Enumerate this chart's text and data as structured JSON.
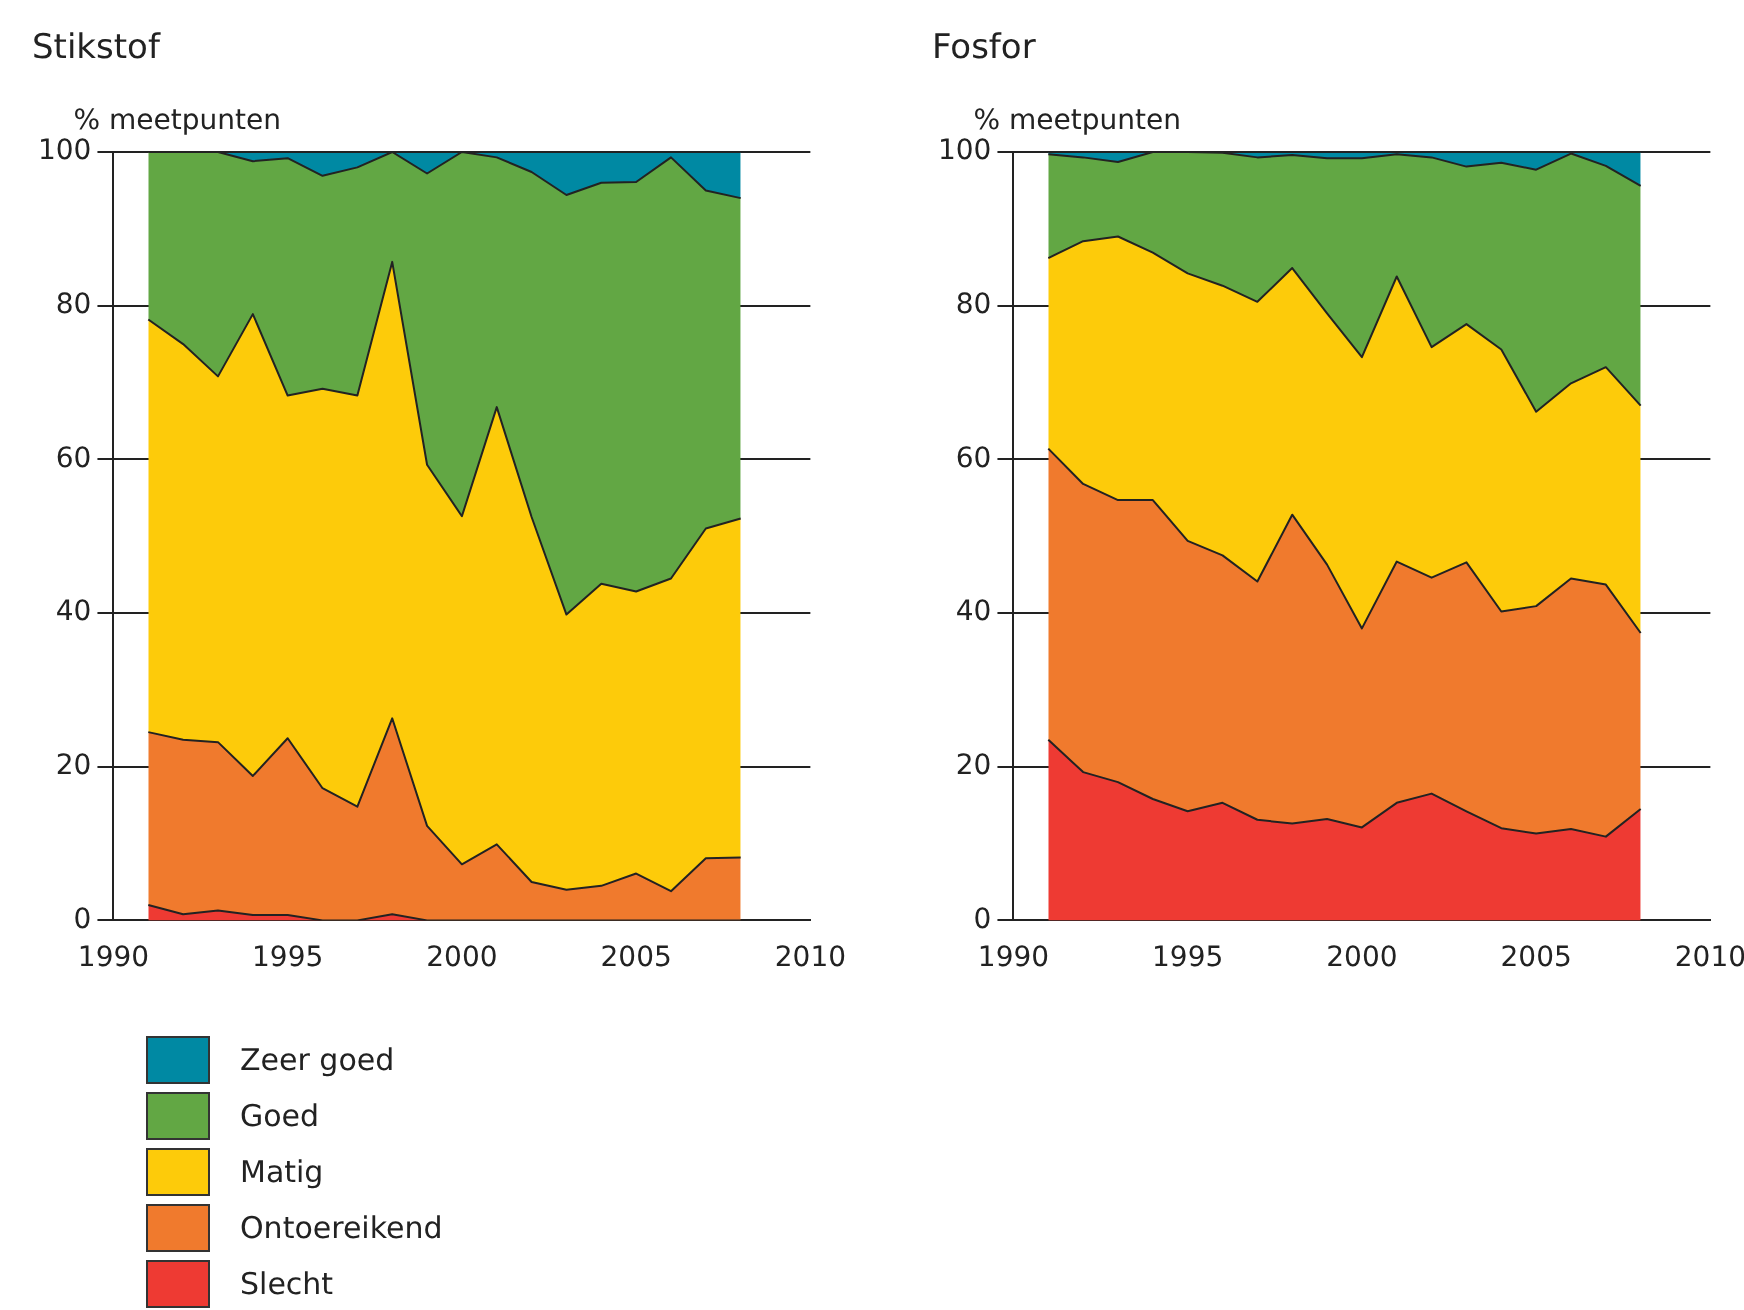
{
  "chart_data": [
    {
      "type": "area",
      "title": "Stikstof",
      "ylabel": "% meetpunten",
      "stacked": true,
      "grid": "y",
      "legend": "bottom",
      "x": [
        1991,
        1992,
        1993,
        1994,
        1995,
        1996,
        1997,
        1998,
        1999,
        2000,
        2001,
        2002,
        2003,
        2004,
        2005,
        2006,
        2007,
        2008
      ],
      "xlim": [
        1990,
        2010
      ],
      "xticks": [
        1990,
        1995,
        2000,
        2005,
        2010
      ],
      "ylim": [
        0,
        100
      ],
      "yticks": [
        0,
        20,
        40,
        60,
        80,
        100
      ],
      "series": [
        {
          "name": "Slecht",
          "color": "#ee3a33",
          "values": [
            2,
            0.8,
            1.3,
            0.7,
            0.7,
            0,
            0,
            0.8,
            0,
            0,
            0,
            0,
            0,
            0,
            0,
            0,
            0,
            0
          ]
        },
        {
          "name": "Ontoereikend",
          "color": "#f07a2d",
          "values": [
            22.5,
            22.7,
            21.9,
            18.1,
            23,
            17.2,
            14.8,
            25.5,
            12.3,
            7.3,
            9.9,
            5,
            4,
            4.5,
            6.1,
            3.8,
            8.1,
            8.2
          ]
        },
        {
          "name": "Matig",
          "color": "#fdcb0a",
          "values": [
            53.7,
            51.5,
            47.6,
            60.1,
            44.6,
            52,
            53.5,
            59.4,
            47,
            45.3,
            56.9,
            47.5,
            35.8,
            39.3,
            36.7,
            40.7,
            42.9,
            44.1
          ]
        },
        {
          "name": "Goed",
          "color": "#62a744",
          "values": [
            21.8,
            25,
            29.2,
            19.9,
            30.9,
            27.7,
            29.7,
            14.3,
            37.9,
            47.4,
            32.5,
            44.9,
            54.6,
            52.2,
            53.3,
            54.8,
            44,
            41.7
          ]
        },
        {
          "name": "Zeer goed",
          "color": "#0089a3",
          "values": [
            0,
            0,
            0,
            1.2,
            0.8,
            3.1,
            2,
            0,
            2.8,
            0,
            0.7,
            2.6,
            5.6,
            4,
            3.9,
            0.7,
            5,
            6
          ]
        }
      ]
    },
    {
      "type": "area",
      "title": "Fosfor",
      "ylabel": "% meetpunten",
      "stacked": true,
      "grid": "y",
      "x": [
        1991,
        1992,
        1993,
        1994,
        1995,
        1996,
        1997,
        1998,
        1999,
        2000,
        2001,
        2002,
        2003,
        2004,
        2005,
        2006,
        2007,
        2008
      ],
      "xlim": [
        1990,
        2010
      ],
      "xticks": [
        1990,
        1995,
        2000,
        2005,
        2010
      ],
      "ylim": [
        0,
        100
      ],
      "yticks": [
        0,
        20,
        40,
        60,
        80,
        100
      ],
      "series": [
        {
          "name": "Slecht",
          "color": "#ee3a33",
          "values": [
            23.5,
            19.3,
            18,
            15.8,
            14.2,
            15.3,
            13.1,
            12.6,
            13.2,
            12.1,
            15.3,
            16.5,
            14.2,
            12,
            11.3,
            11.9,
            10.9,
            14.5
          ]
        },
        {
          "name": "Ontoereikend",
          "color": "#f07a2d",
          "values": [
            37.9,
            37.5,
            36.7,
            38.9,
            35.2,
            32.2,
            31,
            40.2,
            33.1,
            25.9,
            31.4,
            28.1,
            32.4,
            28.2,
            29.6,
            32.6,
            32.8,
            22.9
          ]
        },
        {
          "name": "Matig",
          "color": "#fdcb0a",
          "values": [
            24.8,
            31.6,
            34.3,
            32.2,
            34.8,
            35.1,
            36.4,
            32.1,
            32.7,
            35.3,
            37.1,
            30,
            31,
            34.1,
            25.3,
            25.4,
            28.3,
            29.6
          ]
        },
        {
          "name": "Goed",
          "color": "#62a744",
          "values": [
            13.5,
            10.9,
            9.7,
            13.1,
            15.8,
            17.3,
            18.8,
            14.7,
            20.2,
            25.9,
            15.9,
            24.7,
            20.5,
            24.3,
            31.5,
            29.9,
            26.2,
            28.6
          ]
        },
        {
          "name": "Zeer goed",
          "color": "#0089a3",
          "values": [
            0.3,
            0.7,
            1.3,
            0,
            0,
            0.1,
            0.7,
            0.4,
            0.8,
            0.8,
            0.3,
            0.7,
            1.9,
            1.4,
            2.3,
            0.2,
            1.8,
            4.4
          ]
        }
      ]
    }
  ]
}
